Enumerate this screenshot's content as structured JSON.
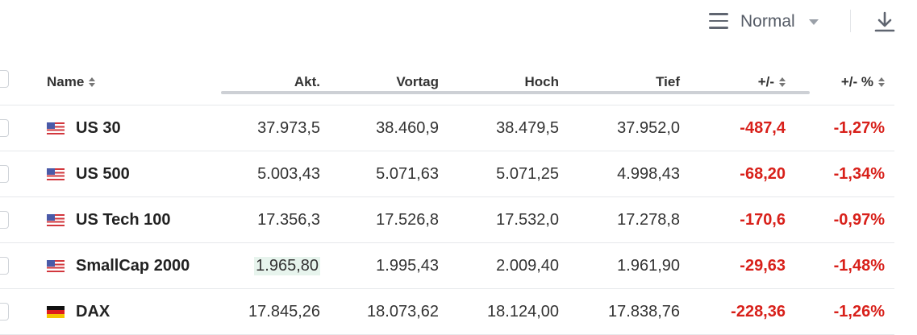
{
  "toolbar": {
    "view_mode": "Normal"
  },
  "columns": {
    "name": "Name",
    "akt": "Akt.",
    "vortag": "Vortag",
    "hoch": "Hoch",
    "tief": "Tief",
    "change": "+/-",
    "change_pct": "+/- %"
  },
  "rows": [
    {
      "flag": "us-flag",
      "name": "US 30",
      "akt": "37.973,5",
      "vortag": "38.460,9",
      "hoch": "38.479,5",
      "tief": "37.952,0",
      "change": "-487,4",
      "change_pct": "-1,27%"
    },
    {
      "flag": "us-flag",
      "name": "US 500",
      "akt": "5.003,43",
      "vortag": "5.071,63",
      "hoch": "5.071,25",
      "tief": "4.998,43",
      "change": "-68,20",
      "change_pct": "-1,34%"
    },
    {
      "flag": "us-flag",
      "name": "US Tech 100",
      "akt": "17.356,3",
      "vortag": "17.526,8",
      "hoch": "17.532,0",
      "tief": "17.278,8",
      "change": "-170,6",
      "change_pct": "-0,97%"
    },
    {
      "flag": "us-flag",
      "name": "SmallCap 2000",
      "akt": "1.965,80",
      "vortag": "1.995,43",
      "hoch": "2.009,40",
      "tief": "1.961,90",
      "change": "-29,63",
      "change_pct": "-1,48%"
    },
    {
      "flag": "germany-flag",
      "name": "DAX",
      "akt": "17.845,26",
      "vortag": "18.073,62",
      "hoch": "18.124,00",
      "tief": "17.838,76",
      "change": "-228,36",
      "change_pct": "-1,26%"
    }
  ],
  "colors": {
    "negative": "#d8201a",
    "highlight": "#e7f4ed",
    "border": "#e6e8eb"
  }
}
